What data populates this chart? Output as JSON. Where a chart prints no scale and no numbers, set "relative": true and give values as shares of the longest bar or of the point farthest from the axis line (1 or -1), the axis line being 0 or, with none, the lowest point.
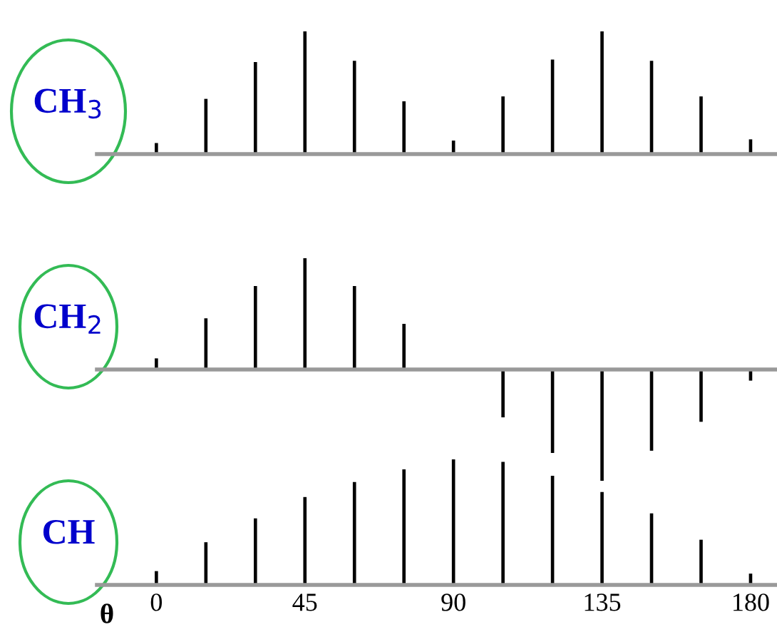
{
  "chart_data": [
    {
      "type": "bar",
      "relative": true,
      "ylabel": "CH$_{3}$",
      "x": [
        0,
        15,
        30,
        45,
        60,
        75,
        90,
        105,
        120,
        135,
        150,
        165,
        180
      ],
      "xlim": [
        -18,
        188
      ],
      "tick_labels": false,
      "grid": false,
      "legend": false,
      "series": [
        {
          "color": "#000000",
          "values": [
            0.09,
            0.45,
            0.75,
            1,
            0.76,
            0.43,
            0.11,
            0.47,
            0.77,
            1,
            0.76,
            0.47,
            0.12
          ]
        }
      ]
    },
    {
      "type": "bar",
      "relative": true,
      "ylabel": "CH$_{2}$",
      "x": [
        0,
        15,
        30,
        45,
        60,
        75,
        90,
        105,
        120,
        135,
        150,
        165,
        180
      ],
      "xlim": [
        -18,
        188
      ],
      "tick_labels": false,
      "grid": false,
      "legend": false,
      "series": [
        {
          "color": "#000000",
          "values": [
            0.1,
            0.46,
            0.75,
            1,
            0.75,
            0.41,
            0,
            -0.43,
            -0.75,
            -1,
            -0.73,
            -0.47,
            -0.1
          ]
        }
      ]
    },
    {
      "type": "bar",
      "relative": true,
      "ylabel": "CH",
      "xlabel": "θ",
      "x": [
        0,
        15,
        30,
        45,
        60,
        75,
        90,
        105,
        120,
        135,
        150,
        165,
        180
      ],
      "xlim": [
        -18,
        188
      ],
      "xticks": [
        0,
        45,
        90,
        135,
        180
      ],
      "tick_labels": "x",
      "grid": false,
      "legend": false,
      "series": [
        {
          "color": "#000000",
          "values": [
            0.11,
            0.34,
            0.53,
            0.7,
            0.82,
            0.92,
            1,
            0.98,
            0.87,
            0.74,
            0.57,
            0.36,
            0.09
          ]
        }
      ]
    }
  ]
}
